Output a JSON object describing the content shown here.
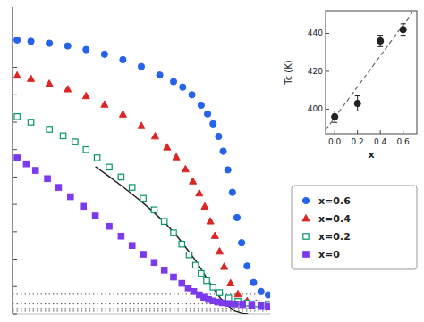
{
  "chart_data": [
    {
      "type": "scatter",
      "xlim": [
        200,
        480
      ],
      "ylim": [
        0.0,
        1.12
      ],
      "yticks": [
        0,
        0.1,
        0.2,
        0.3,
        0.4,
        0.5,
        0.6,
        0.7,
        0.8,
        0.9,
        1.0
      ],
      "tick_labels": false,
      "grid": false,
      "legend": "right",
      "series": [
        {
          "name": "x=0.6",
          "marker": "circle",
          "color": "#2563eb",
          "x": [
            205,
            220,
            240,
            260,
            280,
            300,
            320,
            340,
            360,
            375,
            385,
            395,
            405,
            412,
            418,
            424,
            429,
            434,
            439,
            444,
            449,
            455,
            462,
            470,
            478
          ],
          "values": [
            1.0,
            0.995,
            0.988,
            0.978,
            0.965,
            0.948,
            0.928,
            0.903,
            0.872,
            0.848,
            0.828,
            0.8,
            0.762,
            0.73,
            0.694,
            0.648,
            0.594,
            0.526,
            0.444,
            0.352,
            0.26,
            0.175,
            0.115,
            0.082,
            0.07
          ]
        },
        {
          "name": "x=0.4",
          "marker": "triangle",
          "color": "#dc2626",
          "x": [
            205,
            220,
            240,
            260,
            280,
            300,
            320,
            340,
            355,
            368,
            378,
            388,
            396,
            403,
            409,
            415,
            420,
            425,
            430,
            437,
            445,
            455,
            465,
            478
          ],
          "values": [
            0.87,
            0.858,
            0.84,
            0.82,
            0.795,
            0.764,
            0.728,
            0.686,
            0.648,
            0.608,
            0.572,
            0.528,
            0.484,
            0.44,
            0.392,
            0.338,
            0.285,
            0.228,
            0.172,
            0.112,
            0.072,
            0.047,
            0.038,
            0.035
          ]
        },
        {
          "name": "x=0.2",
          "marker": "square-open",
          "color": "#059669",
          "x": [
            205,
            220,
            240,
            255,
            268,
            280,
            292,
            305,
            318,
            330,
            342,
            354,
            365,
            375,
            384,
            392,
            399,
            405,
            411,
            418,
            425,
            435,
            445,
            455,
            465,
            478
          ],
          "values": [
            0.72,
            0.7,
            0.674,
            0.65,
            0.628,
            0.6,
            0.57,
            0.536,
            0.5,
            0.462,
            0.422,
            0.38,
            0.338,
            0.296,
            0.255,
            0.216,
            0.178,
            0.148,
            0.122,
            0.098,
            0.078,
            0.058,
            0.046,
            0.04,
            0.037,
            0.035
          ]
        },
        {
          "name": "x=0",
          "marker": "square",
          "color": "#7c3aed",
          "x": [
            205,
            215,
            225,
            238,
            250,
            263,
            277,
            290,
            305,
            318,
            330,
            342,
            354,
            365,
            375,
            384,
            391,
            397,
            403,
            408,
            413,
            418,
            423,
            428,
            435,
            442,
            450,
            460,
            470,
            478
          ],
          "values": [
            0.57,
            0.548,
            0.524,
            0.494,
            0.462,
            0.428,
            0.393,
            0.358,
            0.32,
            0.284,
            0.25,
            0.218,
            0.188,
            0.16,
            0.135,
            0.112,
            0.095,
            0.082,
            0.07,
            0.061,
            0.053,
            0.048,
            0.044,
            0.041,
            0.038,
            0.036,
            0.034,
            0.032,
            0.03,
            0.028
          ]
        },
        {
          "type": "line",
          "color": "#222222",
          "x": [
            290,
            305,
            320,
            335,
            350,
            365,
            378,
            389,
            400,
            410,
            418,
            426,
            434,
            442,
            450,
            456
          ],
          "values": [
            0.538,
            0.502,
            0.464,
            0.424,
            0.382,
            0.335,
            0.287,
            0.24,
            0.19,
            0.138,
            0.095,
            0.058,
            0.03,
            0.01,
            0.002,
            0.0
          ]
        },
        {
          "type": "hline",
          "line_style": "dotted",
          "color": "#555555",
          "values": [
            0.072,
            0.037,
            0.02,
            0.01
          ]
        }
      ]
    },
    {
      "type": "scatter",
      "xlabel": "x",
      "ylabel": "Tc (K)",
      "xlim": [
        -0.08,
        0.72
      ],
      "ylim": [
        387,
        452
      ],
      "xticks": [
        {
          "value": 0.0,
          "label": "0.0"
        },
        0.2,
        0.4,
        0.6
      ],
      "yticks": [
        400,
        420,
        440
      ],
      "grid": false,
      "series": [
        {
          "type": "line",
          "line_style": "dashed",
          "color": "#666666",
          "x": [
            -0.08,
            0.68
          ],
          "values": [
            389,
            451
          ]
        },
        {
          "type": "scatter",
          "marker": "circle",
          "color": "#222222",
          "x": [
            0.0,
            0.2,
            0.4,
            0.6
          ],
          "values": [
            396,
            403,
            436,
            442
          ],
          "errors": [
            3,
            4,
            3,
            3
          ]
        }
      ]
    }
  ]
}
